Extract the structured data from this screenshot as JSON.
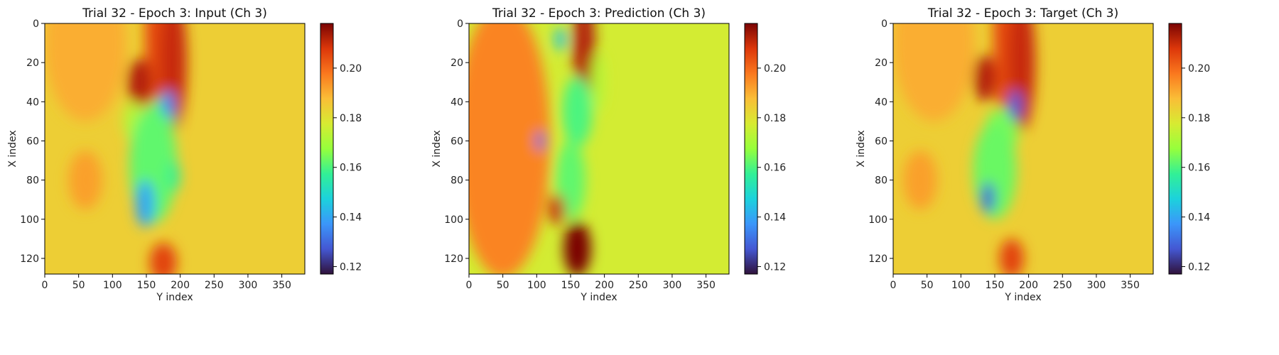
{
  "chart_data": [
    {
      "type": "heatmap",
      "title": "Trial 32 - Epoch 3: Input (Ch 3)",
      "xlabel": "Y index",
      "ylabel": "X index",
      "x_ticks": [
        0,
        50,
        100,
        150,
        200,
        250,
        300,
        350
      ],
      "y_ticks": [
        0,
        20,
        40,
        60,
        80,
        100,
        120
      ],
      "xlim": [
        0,
        384
      ],
      "ylim": [
        128,
        0
      ],
      "colormap": "turbo",
      "colorbar": {
        "min": 0.117,
        "max": 0.218,
        "ticks": [
          0.12,
          0.14,
          0.16,
          0.18,
          0.2
        ],
        "tick_labels": [
          "0.12",
          "0.14",
          "0.16",
          "0.18",
          "0.20"
        ]
      },
      "background_value": 0.184,
      "features": [
        {
          "x": 60,
          "y": 10,
          "rx": 60,
          "ry": 40,
          "v": 0.19
        },
        {
          "x": 170,
          "y": 5,
          "rx": 22,
          "ry": 60,
          "v": 0.205
        },
        {
          "x": 190,
          "y": 20,
          "rx": 20,
          "ry": 35,
          "v": 0.21
        },
        {
          "x": 140,
          "y": 30,
          "rx": 18,
          "ry": 12,
          "v": 0.212
        },
        {
          "x": 130,
          "y": 50,
          "rx": 14,
          "ry": 10,
          "v": 0.172
        },
        {
          "x": 172,
          "y": 48,
          "rx": 20,
          "ry": 10,
          "v": 0.16
        },
        {
          "x": 182,
          "y": 42,
          "rx": 10,
          "ry": 8,
          "v": 0.135
        },
        {
          "x": 160,
          "y": 72,
          "rx": 35,
          "ry": 30,
          "v": 0.162
        },
        {
          "x": 148,
          "y": 92,
          "rx": 14,
          "ry": 12,
          "v": 0.14
        },
        {
          "x": 190,
          "y": 78,
          "rx": 10,
          "ry": 8,
          "v": 0.158
        },
        {
          "x": 175,
          "y": 122,
          "rx": 20,
          "ry": 10,
          "v": 0.206
        },
        {
          "x": 60,
          "y": 80,
          "rx": 25,
          "ry": 15,
          "v": 0.192
        }
      ]
    },
    {
      "type": "heatmap",
      "title": "Trial 32 - Epoch 3: Prediction (Ch 3)",
      "xlabel": "Y index",
      "ylabel": "X index",
      "x_ticks": [
        0,
        50,
        100,
        150,
        200,
        250,
        300,
        350
      ],
      "y_ticks": [
        0,
        20,
        40,
        60,
        80,
        100,
        120
      ],
      "xlim": [
        0,
        384
      ],
      "ylim": [
        128,
        0
      ],
      "colormap": "turbo",
      "colorbar": {
        "min": 0.117,
        "max": 0.218,
        "ticks": [
          0.12,
          0.14,
          0.16,
          0.18,
          0.2
        ],
        "tick_labels": [
          "0.12",
          "0.14",
          "0.16",
          "0.18",
          "0.20"
        ]
      },
      "background_value": 0.177,
      "features": [
        {
          "x": 50,
          "y": 60,
          "rx": 70,
          "ry": 70,
          "v": 0.196
        },
        {
          "x": 170,
          "y": 12,
          "rx": 16,
          "ry": 30,
          "v": 0.212
        },
        {
          "x": 135,
          "y": 8,
          "rx": 8,
          "ry": 6,
          "v": 0.145
        },
        {
          "x": 160,
          "y": 45,
          "rx": 22,
          "ry": 18,
          "v": 0.16
        },
        {
          "x": 105,
          "y": 60,
          "rx": 6,
          "ry": 5,
          "v": 0.13
        },
        {
          "x": 150,
          "y": 80,
          "rx": 22,
          "ry": 20,
          "v": 0.162
        },
        {
          "x": 130,
          "y": 95,
          "rx": 12,
          "ry": 8,
          "v": 0.21
        },
        {
          "x": 160,
          "y": 115,
          "rx": 20,
          "ry": 14,
          "v": 0.218
        },
        {
          "x": 190,
          "y": 30,
          "rx": 10,
          "ry": 15,
          "v": 0.172
        }
      ]
    },
    {
      "type": "heatmap",
      "title": "Trial 32 - Epoch 3: Target (Ch 3)",
      "xlabel": "Y index",
      "ylabel": "X index",
      "x_ticks": [
        0,
        50,
        100,
        150,
        200,
        250,
        300,
        350
      ],
      "y_ticks": [
        0,
        20,
        40,
        60,
        80,
        100,
        120
      ],
      "xlim": [
        0,
        384
      ],
      "ylim": [
        128,
        0
      ],
      "colormap": "turbo",
      "colorbar": {
        "min": 0.117,
        "max": 0.218,
        "ticks": [
          0.12,
          0.14,
          0.16,
          0.18,
          0.2
        ],
        "tick_labels": [
          "0.12",
          "0.14",
          "0.16",
          "0.18",
          "0.20"
        ]
      },
      "background_value": 0.184,
      "features": [
        {
          "x": 60,
          "y": 10,
          "rx": 60,
          "ry": 40,
          "v": 0.19
        },
        {
          "x": 170,
          "y": 5,
          "rx": 22,
          "ry": 60,
          "v": 0.205
        },
        {
          "x": 190,
          "y": 20,
          "rx": 20,
          "ry": 35,
          "v": 0.21
        },
        {
          "x": 135,
          "y": 28,
          "rx": 16,
          "ry": 12,
          "v": 0.212
        },
        {
          "x": 160,
          "y": 55,
          "rx": 25,
          "ry": 12,
          "v": 0.165
        },
        {
          "x": 180,
          "y": 42,
          "rx": 10,
          "ry": 8,
          "v": 0.128
        },
        {
          "x": 150,
          "y": 75,
          "rx": 32,
          "ry": 25,
          "v": 0.163
        },
        {
          "x": 140,
          "y": 89,
          "rx": 10,
          "ry": 8,
          "v": 0.128
        },
        {
          "x": 175,
          "y": 120,
          "rx": 18,
          "ry": 10,
          "v": 0.206
        },
        {
          "x": 40,
          "y": 80,
          "rx": 25,
          "ry": 15,
          "v": 0.192
        }
      ]
    }
  ]
}
